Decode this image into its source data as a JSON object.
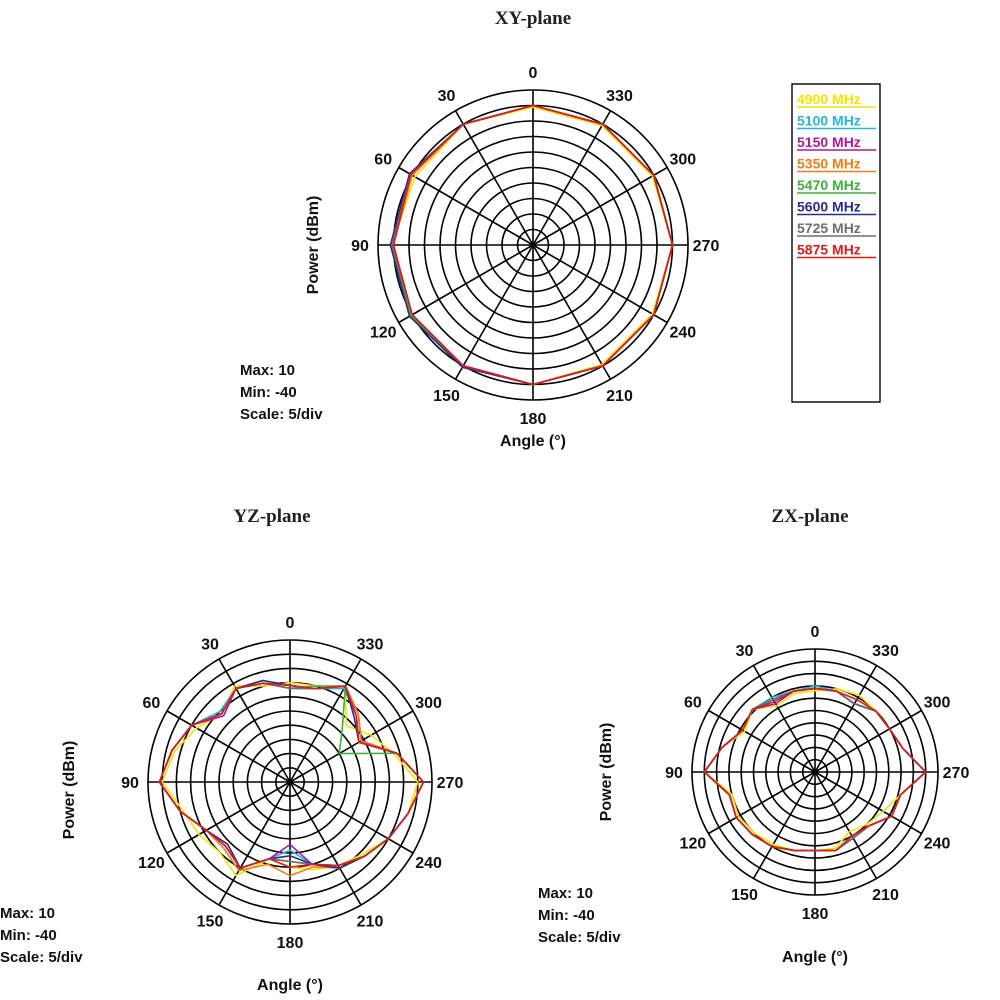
{
  "chart_data": [
    {
      "type": "polar-line",
      "title": "XY-plane",
      "radial_label": "Power  (dBm)",
      "angular_label": "Angle  (°)",
      "angle_ticks": [
        "0",
        "30",
        "60",
        "90",
        "120",
        "150",
        "180",
        "210",
        "240",
        "270",
        "300",
        "330"
      ],
      "radial_range": [
        -40,
        10
      ],
      "stats": {
        "max": "Max: 10",
        "min": "Min: -40",
        "scale": "Scale: 5/div"
      },
      "angles": [
        0,
        30,
        60,
        90,
        120,
        150,
        180,
        210,
        240,
        270,
        300,
        330
      ],
      "series": [
        {
          "name": "4900 MHz",
          "values": [
            4.5,
            5,
            4,
            5.5,
            5.5,
            5,
            5,
            4.5,
            4.5,
            5,
            4.5,
            4.5
          ]
        },
        {
          "name": "5100 MHz",
          "values": [
            5,
            5,
            5.5,
            5.5,
            5,
            5,
            5,
            5,
            5,
            5,
            5,
            5
          ]
        },
        {
          "name": "5150 MHz",
          "values": [
            5,
            5,
            5.5,
            5.5,
            5,
            5,
            5,
            5,
            5,
            5,
            5,
            5
          ]
        },
        {
          "name": "5350 MHz",
          "values": [
            5,
            5,
            5,
            5,
            5,
            5.5,
            5,
            5,
            5,
            5,
            5,
            5
          ]
        },
        {
          "name": "5470 MHz",
          "values": [
            5,
            5,
            5.5,
            5.5,
            5.5,
            5,
            5,
            5,
            5,
            5,
            5,
            5
          ]
        },
        {
          "name": "5600 MHz",
          "values": [
            5,
            5,
            6,
            6,
            6,
            5.5,
            5,
            5,
            5,
            5,
            5,
            5
          ]
        },
        {
          "name": "5725 MHz",
          "values": [
            5,
            5,
            5.5,
            5.5,
            5,
            5,
            5,
            5,
            5,
            5,
            5,
            5
          ]
        },
        {
          "name": "5875 MHz",
          "values": [
            5,
            5,
            5.5,
            5,
            5,
            5,
            5,
            5,
            5,
            5,
            5,
            5
          ]
        }
      ]
    },
    {
      "type": "polar-line",
      "title": "YZ-plane",
      "radial_label": "Power  (dBm)",
      "angular_label": "Angle  (°)",
      "angle_ticks": [
        "0",
        "30",
        "60",
        "90",
        "120",
        "150",
        "180",
        "210",
        "240",
        "270",
        "300",
        "330"
      ],
      "radial_range": [
        -40,
        10
      ],
      "stats": {
        "max": "Max: 10",
        "min": "Min: -40",
        "scale": "Scale: 5/div"
      },
      "angles": [
        0,
        15,
        30,
        45,
        60,
        75,
        90,
        105,
        120,
        135,
        150,
        165,
        180,
        195,
        210,
        225,
        240,
        255,
        270,
        285,
        300,
        315,
        330,
        345
      ],
      "series": [
        {
          "name": "4900 MHz",
          "values": [
            -5,
            -5,
            -1,
            -6,
            -2,
            2,
            5,
            -1,
            -3,
            -5,
            -2,
            -12,
            -10,
            -8,
            -6,
            -4,
            0,
            3,
            5,
            -2,
            -7,
            -12,
            -1,
            -5
          ]
        },
        {
          "name": "5100 MHz",
          "values": [
            -6,
            -3,
            -2,
            -5,
            0,
            3,
            6,
            0,
            -6,
            -8,
            -5,
            -12,
            -16,
            -10,
            -5,
            -3,
            0,
            3,
            7,
            -1,
            -12,
            -7,
            -2,
            -6
          ]
        },
        {
          "name": "5150 MHz",
          "values": [
            -7,
            -4,
            -2,
            -7,
            0,
            3,
            6,
            0,
            -6,
            -8,
            -5,
            -12,
            -18,
            -10,
            -6,
            -3,
            0,
            3,
            7,
            -1,
            -11,
            -6,
            -1,
            -6
          ]
        },
        {
          "name": "5350 MHz",
          "values": [
            -6,
            -4,
            -2,
            -6,
            0,
            3,
            6,
            0,
            -6,
            -7,
            -4,
            -10,
            -7,
            -9,
            -5,
            -3,
            0,
            3,
            7,
            -1,
            -11,
            -6,
            -1,
            -6
          ]
        },
        {
          "name": "5470 MHz",
          "values": [
            -7,
            -4,
            -2,
            -6,
            0,
            3,
            6,
            0,
            -6,
            -8,
            -5,
            -12,
            -12,
            -10,
            -6,
            -3,
            0,
            3,
            7,
            -1,
            -20,
            -14,
            -1,
            -5
          ]
        },
        {
          "name": "5600 MHz",
          "values": [
            -6,
            -3,
            -2,
            -6,
            0,
            3,
            6,
            0,
            -6,
            -9,
            -5,
            -12,
            -14,
            -10,
            -5,
            -3,
            0,
            3,
            7,
            -1,
            -12,
            -8,
            -1,
            -6
          ]
        },
        {
          "name": "5725 MHz",
          "values": [
            -7,
            -4,
            -2,
            -6,
            0,
            3,
            6,
            0,
            -6,
            -8,
            -5,
            -12,
            -12,
            -10,
            -6,
            -3,
            0,
            3,
            7,
            -1,
            -12,
            -7,
            -1,
            -6
          ]
        },
        {
          "name": "5875 MHz",
          "values": [
            -6,
            -4,
            -2,
            -6,
            0,
            3,
            6,
            0,
            -6,
            -8,
            -5,
            -12,
            -10,
            -10,
            -6,
            -3,
            0,
            3,
            7,
            -1,
            -12,
            -7,
            -1,
            -6
          ]
        }
      ]
    },
    {
      "type": "polar-line",
      "title": "ZX-plane",
      "radial_label": "Power  (dBm)",
      "angular_label": "Angle  (°)",
      "angle_ticks": [
        "0",
        "30",
        "60",
        "90",
        "120",
        "150",
        "180",
        "210",
        "240",
        "270",
        "300",
        "330"
      ],
      "radial_range": [
        -40,
        10
      ],
      "stats": {
        "max": "Max: 10",
        "min": "Min: -40",
        "scale": "Scale: 5/div"
      },
      "angles": [
        0,
        15,
        30,
        45,
        60,
        75,
        90,
        105,
        120,
        135,
        150,
        165,
        180,
        195,
        210,
        225,
        240,
        255,
        270,
        285,
        300,
        315,
        330,
        345
      ],
      "series": [
        {
          "name": "4900 MHz",
          "values": [
            -7,
            -7,
            -9,
            -4,
            -7,
            -1,
            5,
            -5,
            -4,
            -5,
            -6,
            -7,
            -8,
            -8,
            -12,
            -10,
            -8,
            -4,
            5,
            -3,
            -5,
            -5,
            -4,
            -5
          ]
        },
        {
          "name": "5100 MHz",
          "values": [
            -5,
            -6,
            -5,
            -4,
            -6,
            -1,
            5,
            -4,
            -3,
            -4,
            -5,
            -7,
            -8,
            -7,
            -9,
            -9,
            -4,
            -4,
            5,
            -3,
            -5,
            -5,
            -8,
            -6
          ]
        },
        {
          "name": "5150 MHz",
          "values": [
            -6,
            -6,
            -8,
            -4,
            -6,
            -1,
            5,
            -4,
            -3,
            -4,
            -5,
            -7,
            -8,
            -7,
            -9,
            -9,
            -4,
            -4,
            5,
            -3,
            -5,
            -5,
            -8,
            -6
          ]
        },
        {
          "name": "5350 MHz",
          "values": [
            -6,
            -6,
            -6,
            -4,
            -6,
            -1,
            5,
            -4,
            -3,
            -4,
            -5,
            -7,
            -8,
            -7,
            -9,
            -9,
            -4,
            -4,
            5,
            -3,
            -5,
            -5,
            -8,
            -6
          ]
        },
        {
          "name": "5470 MHz",
          "values": [
            -6,
            -6,
            -6,
            -4,
            -6,
            -1,
            5,
            -4,
            -3,
            -4,
            -5,
            -7,
            -8,
            -7,
            -9,
            -9,
            -4,
            -4,
            5,
            -3,
            -5,
            -5,
            -8,
            -6
          ]
        },
        {
          "name": "5600 MHz",
          "values": [
            -6,
            -6,
            -6,
            -4,
            -6,
            -1,
            5,
            -4,
            -3,
            -4,
            -5,
            -7,
            -8,
            -7,
            -9,
            -9,
            -4,
            -4,
            5,
            -3,
            -5,
            -5,
            -8,
            -6
          ]
        },
        {
          "name": "5725 MHz",
          "values": [
            -6,
            -6,
            -6,
            -4,
            -6,
            -1,
            5,
            -4,
            -3,
            -4,
            -5,
            -7,
            -8,
            -7,
            -9,
            -9,
            -4,
            -4,
            5,
            -3,
            -5,
            -5,
            -8,
            -6
          ]
        },
        {
          "name": "5875 MHz",
          "values": [
            -6,
            -6,
            -7,
            -4,
            -6,
            -1,
            5,
            -4,
            -3,
            -4,
            -5,
            -7,
            -8,
            -7,
            -10,
            -9,
            -4,
            -4,
            5,
            -3,
            -5,
            -5,
            -6,
            -6
          ]
        }
      ]
    }
  ],
  "legend": {
    "entries": [
      {
        "label": "4900 MHz",
        "color": "#f2e400"
      },
      {
        "label": "5100 MHz",
        "color": "#27b5d8"
      },
      {
        "label": "5150 MHz",
        "color": "#b0179d"
      },
      {
        "label": "5350 MHz",
        "color": "#f07d17"
      },
      {
        "label": "5470 MHz",
        "color": "#3bb13b"
      },
      {
        "label": "5600 MHz",
        "color": "#2d2a8f"
      },
      {
        "label": "5725 MHz",
        "color": "#6e6e6e"
      },
      {
        "label": "5875 MHz",
        "color": "#e11b1b"
      }
    ]
  }
}
